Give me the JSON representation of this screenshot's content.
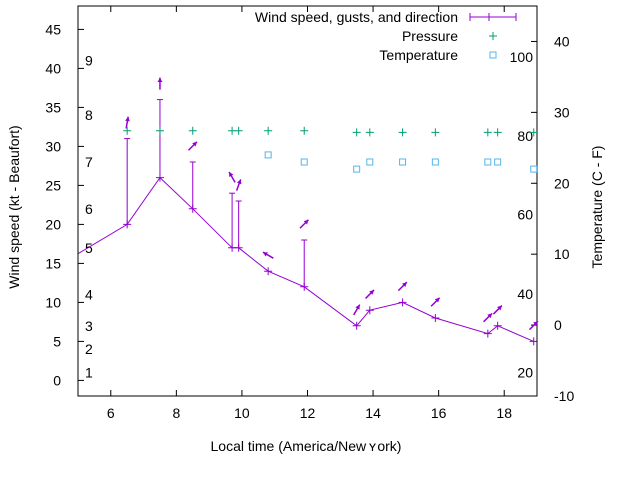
{
  "chart_data": {
    "type": "line",
    "xlabel": "Local time (America/New ʏ ork)",
    "ylabel_left": "Wind speed (kt - Beaufort)",
    "ylabel_right": "Temperature (C - F)",
    "xlim": [
      5,
      19
    ],
    "ylim_left": [
      -2,
      48
    ],
    "ylim_right": [
      -10,
      45
    ],
    "x_ticks": [
      6,
      8,
      10,
      12,
      14,
      16,
      18
    ],
    "y_left_ticks": [
      0,
      5,
      10,
      15,
      20,
      25,
      30,
      35,
      40,
      45
    ],
    "y_right_ticks": [
      -10,
      0,
      10,
      20,
      30,
      40
    ],
    "beaufort_labels": [
      {
        "label": "1",
        "value": 1
      },
      {
        "label": "2",
        "value": 4
      },
      {
        "label": "3",
        "value": 7
      },
      {
        "label": "4",
        "value": 11
      },
      {
        "label": "5",
        "value": 17
      },
      {
        "label": "6",
        "value": 22
      },
      {
        "label": "7",
        "value": 28
      },
      {
        "label": "8",
        "value": 34
      },
      {
        "label": "9",
        "value": 41
      }
    ],
    "fahrenheit_labels": [
      {
        "label": "20",
        "temp_c": -6.7
      },
      {
        "label": "40",
        "temp_c": 4.4
      },
      {
        "label": "60",
        "temp_c": 15.6
      },
      {
        "label": "80",
        "temp_c": 26.7
      },
      {
        "label": "100",
        "temp_c": 37.8
      }
    ],
    "legend": [
      {
        "name": "Wind speed, gusts, and direction",
        "color": "#9400d3"
      },
      {
        "name": "Pressure",
        "color": "#009e73"
      },
      {
        "name": "Temperature",
        "color": "#56b4e9"
      }
    ],
    "series": [
      {
        "name": "Wind speed, gusts, and direction",
        "color": "#9400d3",
        "x": [
          4.5,
          6.5,
          7.5,
          8.5,
          9.7,
          9.9,
          10.8,
          11.9,
          13.5,
          13.9,
          14.9,
          15.9,
          17.5,
          17.8,
          18.9
        ],
        "y": [
          15,
          20,
          26,
          22,
          17,
          17,
          14,
          12,
          7,
          9,
          10,
          8,
          6,
          7,
          5
        ],
        "gusts": [
          null,
          31,
          36,
          28,
          24,
          23,
          null,
          18,
          null,
          null,
          null,
          null,
          null,
          null,
          null
        ],
        "direction_deg": [
          null,
          10,
          0,
          45,
          330,
          20,
          300,
          45,
          30,
          45,
          45,
          45,
          45,
          45,
          45
        ]
      },
      {
        "name": "Pressure",
        "color": "#009e73",
        "x": [
          6.5,
          7.5,
          8.5,
          9.7,
          9.9,
          10.8,
          11.9,
          13.5,
          13.9,
          14.9,
          15.9,
          17.5,
          17.8,
          18.9
        ],
        "y": [
          32,
          32,
          32,
          32,
          32,
          32,
          32,
          31.8,
          31.8,
          31.8,
          31.8,
          31.8,
          31.8,
          31.8
        ]
      },
      {
        "name": "Temperature",
        "color": "#56b4e9",
        "x": [
          10.8,
          11.9,
          13.5,
          13.9,
          14.9,
          15.9,
          17.5,
          17.8,
          18.9
        ],
        "y_temp_c": [
          24,
          23,
          22,
          23,
          23,
          23,
          23,
          23,
          22
        ]
      }
    ]
  }
}
